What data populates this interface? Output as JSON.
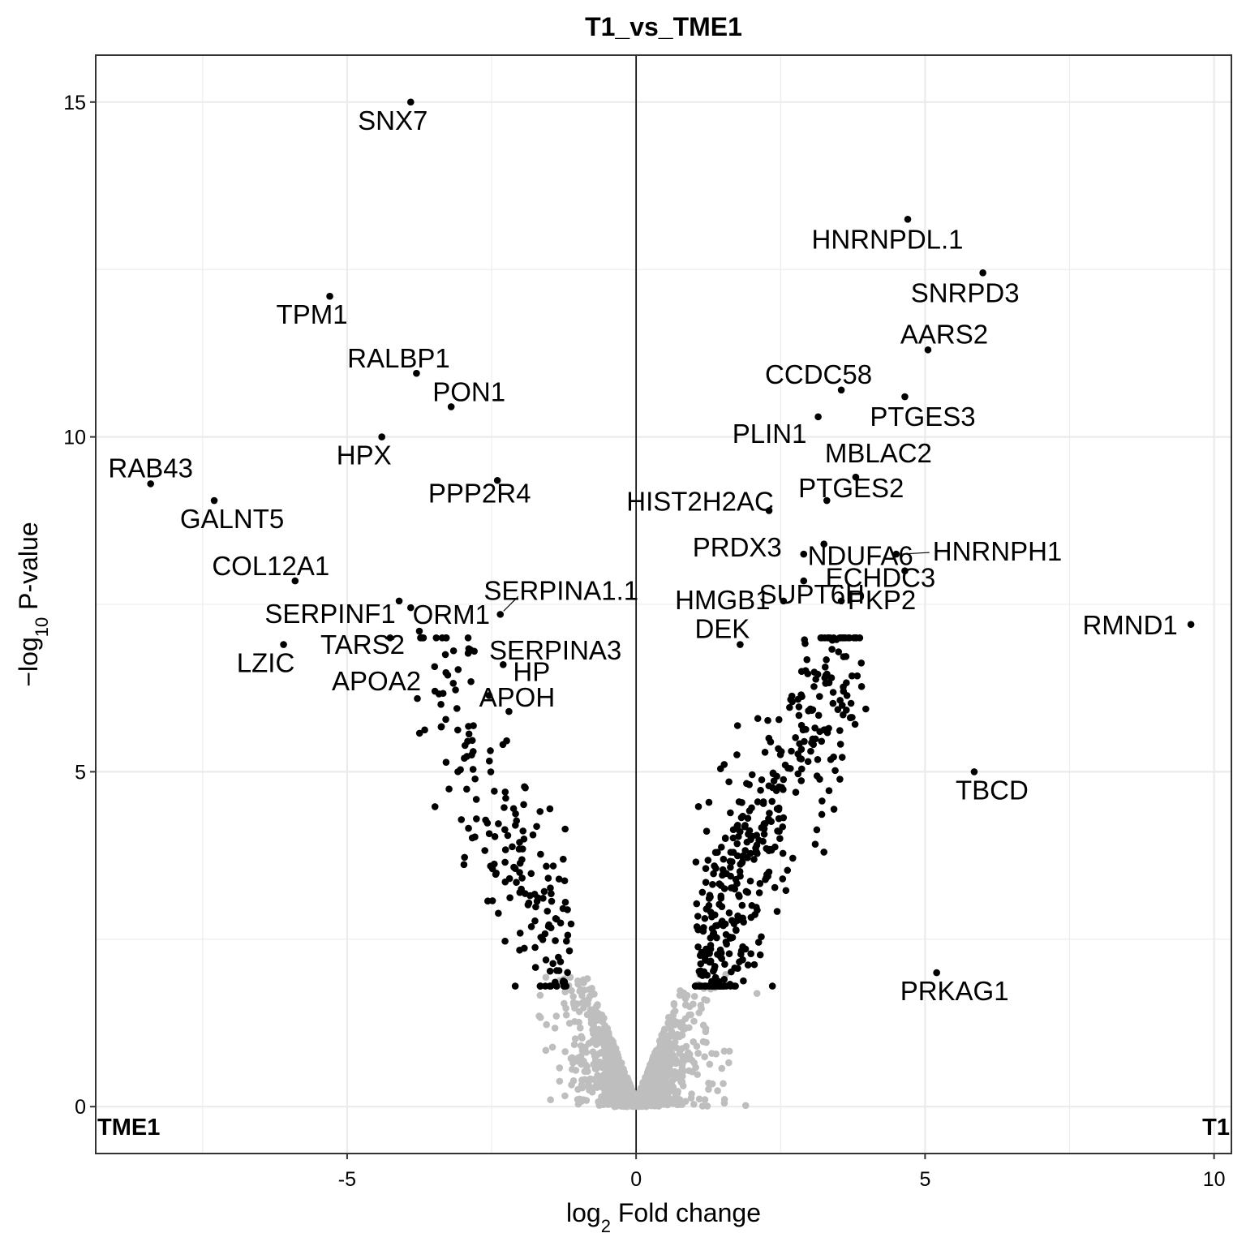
{
  "chart_data": {
    "type": "scatter",
    "title": "T1_vs_TME1",
    "xlabel_main": "log",
    "xlabel_sub": "2",
    "xlabel_rest": " Fold change",
    "ylabel_prefix": "−log",
    "ylabel_sub": "10",
    "ylabel_rest": " P-value",
    "xlim": [
      -9.35,
      10.3
    ],
    "ylim": [
      -0.7,
      15.7
    ],
    "x_ticks": [
      -5,
      0,
      5,
      10
    ],
    "y_ticks": [
      0,
      5,
      10,
      15
    ],
    "x_tick_labels": [
      "-5",
      "0",
      "5",
      "10"
    ],
    "y_tick_labels": [
      "0",
      "5",
      "10",
      "15"
    ],
    "grid": true,
    "vline_x": 0,
    "left_corner_label": "TME1",
    "right_corner_label": "T1",
    "colors": {
      "significant": "#000000",
      "not_significant": "#bebebe",
      "grid": "#ebebeb",
      "frame": "#333333"
    },
    "labeled_points": [
      {
        "gene": "SNX7",
        "x": -3.9,
        "y": 15.0
      },
      {
        "gene": "TPM1",
        "x": -5.3,
        "y": 12.1
      },
      {
        "gene": "RALBP1",
        "x": -3.8,
        "y": 10.95
      },
      {
        "gene": "PON1",
        "x": -3.2,
        "y": 10.45
      },
      {
        "gene": "HPX",
        "x": -4.4,
        "y": 10.0
      },
      {
        "gene": "RAB43",
        "x": -8.4,
        "y": 9.3
      },
      {
        "gene": "GALNT5",
        "x": -7.3,
        "y": 9.05
      },
      {
        "gene": "PPP2R4",
        "x": -2.4,
        "y": 9.35
      },
      {
        "gene": "COL12A1",
        "x": -5.9,
        "y": 7.85
      },
      {
        "gene": "SERPINF1",
        "x": -4.1,
        "y": 7.55
      },
      {
        "gene": "ORM1",
        "x": -3.9,
        "y": 7.45
      },
      {
        "gene": "SERPINA1.1",
        "x": -2.35,
        "y": 7.35
      },
      {
        "gene": "TARS2",
        "x": -3.75,
        "y": 7.1
      },
      {
        "gene": "LZIC",
        "x": -6.1,
        "y": 6.9
      },
      {
        "gene": "APOA2",
        "x": -3.3,
        "y": 6.75
      },
      {
        "gene": "SERPINA3",
        "x": -2.8,
        "y": 6.8
      },
      {
        "gene": "HP",
        "x": -2.3,
        "y": 6.6
      },
      {
        "gene": "APOH",
        "x": -2.2,
        "y": 5.9
      },
      {
        "gene": "HNRNPDL.1",
        "x": 4.7,
        "y": 13.25
      },
      {
        "gene": "SNRPD3",
        "x": 6.0,
        "y": 12.45
      },
      {
        "gene": "AARS2",
        "x": 5.05,
        "y": 11.3
      },
      {
        "gene": "CCDC58",
        "x": 3.55,
        "y": 10.7
      },
      {
        "gene": "PTGES3",
        "x": 4.65,
        "y": 10.6
      },
      {
        "gene": "PLIN1",
        "x": 3.15,
        "y": 10.3
      },
      {
        "gene": "MBLAC2",
        "x": 3.8,
        "y": 9.4
      },
      {
        "gene": "PTGES2",
        "x": 3.3,
        "y": 9.05
      },
      {
        "gene": "HIST2H2AC",
        "x": 2.3,
        "y": 8.9
      },
      {
        "gene": "NDUFA6",
        "x": 3.25,
        "y": 8.4
      },
      {
        "gene": "HNRNPH1",
        "x": 4.5,
        "y": 8.25
      },
      {
        "gene": "PRDX3",
        "x": 2.9,
        "y": 8.25
      },
      {
        "gene": "SUPT6H",
        "x": 2.9,
        "y": 7.85
      },
      {
        "gene": "ECHDC3",
        "x": 4.65,
        "y": 8.0
      },
      {
        "gene": "HMGB1",
        "x": 2.55,
        "y": 7.55
      },
      {
        "gene": "PKP2",
        "x": 3.55,
        "y": 7.55
      },
      {
        "gene": "DEK",
        "x": 1.8,
        "y": 6.9
      },
      {
        "gene": "RMND1",
        "x": 9.6,
        "y": 7.2
      },
      {
        "gene": "TBCD",
        "x": 5.85,
        "y": 5.0
      },
      {
        "gene": "PRKAG1",
        "x": 5.2,
        "y": 2.0
      }
    ]
  }
}
